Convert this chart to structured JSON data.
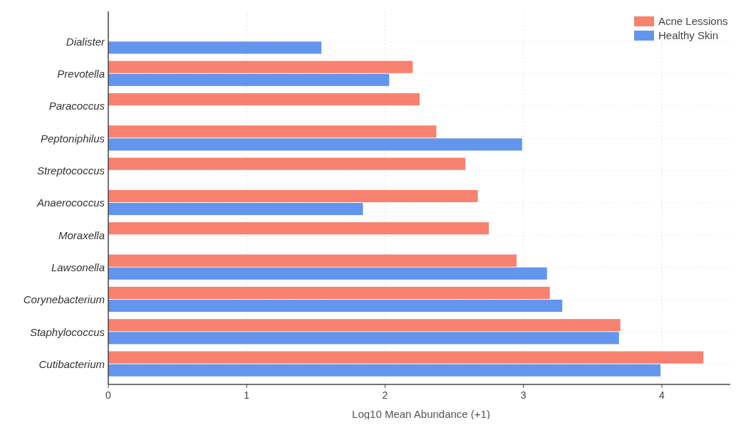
{
  "chart_data": {
    "type": "bar",
    "orientation": "horizontal",
    "xlabel": "Log10 Mean Abundance (+1)",
    "categories": [
      "Dialister",
      "Prevotella",
      "Paracoccus",
      "Peptoniphilus",
      "Streptococcus",
      "Anaerococcus",
      "Moraxella",
      "Lawsonella",
      "Corynebacterium",
      "Staphylococcus",
      "Cutibacterium"
    ],
    "series": [
      {
        "name": "Acne Lessions",
        "color": "#f8816f",
        "values": [
          null,
          2.2,
          2.25,
          2.37,
          2.58,
          2.67,
          2.75,
          2.95,
          3.19,
          3.7,
          4.3
        ]
      },
      {
        "name": "Healthy Skin",
        "color": "#6495ed",
        "values": [
          1.54,
          2.03,
          null,
          2.99,
          null,
          1.84,
          null,
          3.17,
          3.28,
          3.69,
          3.99
        ]
      }
    ],
    "xlim": [
      0,
      4.52
    ],
    "xticks": [
      0,
      1,
      2,
      3,
      4
    ],
    "grid": true,
    "legend": "top right"
  }
}
